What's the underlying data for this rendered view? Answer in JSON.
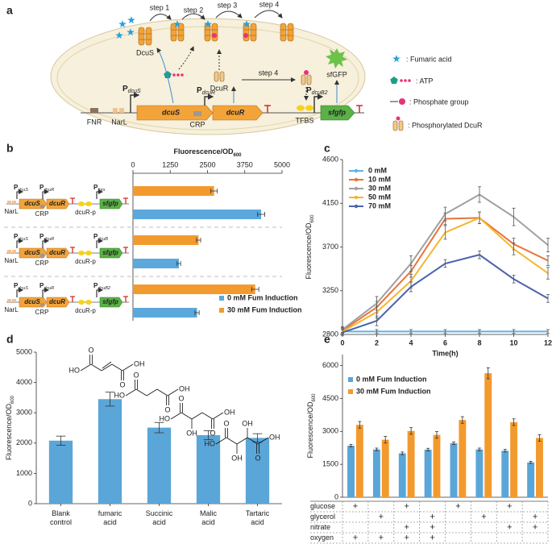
{
  "diagram": {
    "panel": "a",
    "steps": [
      "step 1",
      "step 2",
      "step 3",
      "step 4"
    ],
    "dcus": "DcuS",
    "dcur": "DcuR",
    "sfgfp_protein": "sfGFP",
    "tfbs": "TFBS",
    "fnr": "FNR",
    "narl": "NarL",
    "crp": "CRP",
    "genes": [
      "dcuS",
      "dcuR",
      "sfgfp"
    ],
    "promoter_letter": "P",
    "promoters": [
      "dcuS",
      "dcuR",
      "dcuB2"
    ],
    "legend": [
      ": Fumaric acid",
      ": ATP",
      ": Phosphate group",
      ": Phosphorylated DcuR"
    ]
  },
  "chart_data": [
    {
      "type": "bar",
      "panel": "b",
      "orientation": "horizontal",
      "xlabel": {
        "text": "Fluorescence/OD",
        "sub": "600"
      },
      "xlim": [
        0,
        5000
      ],
      "xticks": [
        0,
        1250,
        2500,
        3750,
        5000
      ],
      "series": [
        {
          "name": "0 mM Fum Induction",
          "color": "#5aa8dc",
          "values": [
            4300,
            1540,
            2150
          ],
          "errors": [
            120,
            60,
            70
          ]
        },
        {
          "name": "30 mM Fum Induction",
          "color": "#f39a2e",
          "values": [
            2720,
            2200,
            4100
          ],
          "errors": [
            110,
            70,
            120
          ]
        }
      ],
      "promoter_letter": "P",
      "constructs": [
        {
          "promoters": [
            "dcuS",
            "dcuR",
            "fnrs"
          ],
          "genes": [
            "dcuS",
            "dcuR",
            "sfgfp"
          ],
          "sites": [
            "NarL",
            "CRP",
            "dcuR-p"
          ]
        },
        {
          "promoters": [
            "dcuS",
            "dcuR",
            "dcuB"
          ],
          "genes": [
            "dcuS",
            "dcuR",
            "sfgfp"
          ],
          "sites": [
            "NarL",
            "CRP",
            "dcuR-p"
          ]
        },
        {
          "promoters": [
            "dcuS",
            "dcuR",
            "dcuB2"
          ],
          "genes": [
            "dcuS",
            "dcuR",
            "sfgfp"
          ],
          "sites": [
            "NarL",
            "CRP",
            "dcuR-p"
          ]
        }
      ]
    },
    {
      "type": "line",
      "panel": "c",
      "xlabel": "Time(h)",
      "ylabel": {
        "text": "Fluorescence/OD",
        "sub": "600"
      },
      "x": [
        0,
        2,
        4,
        6,
        8,
        10,
        12
      ],
      "xlim": [
        0,
        12
      ],
      "xticks": [
        0,
        2,
        4,
        6,
        8,
        10,
        12
      ],
      "ylim": [
        2800,
        4600
      ],
      "yticks": [
        2800,
        3250,
        3700,
        4150,
        4600
      ],
      "series": [
        {
          "name": "0 mM",
          "color": "#5ab4e5",
          "values": [
            2830,
            2830,
            2830,
            2830,
            2830,
            2830,
            2830
          ],
          "errors": [
            20,
            20,
            20,
            20,
            20,
            20,
            20
          ]
        },
        {
          "name": "10 mM",
          "color": "#e8733a",
          "values": [
            2840,
            3080,
            3450,
            3990,
            4000,
            3730,
            3560
          ],
          "errors": [
            30,
            60,
            60,
            60,
            60,
            60,
            50
          ]
        },
        {
          "name": "30 mM",
          "color": "#a0a0a0",
          "values": [
            2850,
            3120,
            3530,
            4040,
            4240,
            4010,
            3720
          ],
          "errors": [
            30,
            70,
            80,
            70,
            80,
            90,
            70
          ]
        },
        {
          "name": "50 mM",
          "color": "#f5b62e",
          "values": [
            2830,
            3030,
            3350,
            3850,
            4000,
            3680,
            3430
          ],
          "errors": [
            30,
            60,
            70,
            70,
            60,
            60,
            60
          ]
        },
        {
          "name": "70 mM",
          "color": "#4b64ad",
          "values": [
            2820,
            2940,
            3290,
            3530,
            3620,
            3370,
            3170
          ],
          "errors": [
            30,
            50,
            50,
            40,
            40,
            40,
            40
          ]
        }
      ]
    },
    {
      "type": "bar",
      "panel": "d",
      "ylabel": {
        "text": "Fluorescence/OD",
        "sub": "600"
      },
      "categories": [
        "Blank control",
        "fumaric acid",
        "Succinic acid",
        "Malic acid",
        "Tartaric acid"
      ],
      "values": [
        2080,
        3450,
        2510,
        2260,
        2170
      ],
      "errors": [
        150,
        230,
        170,
        150,
        140
      ],
      "color": "#5aa6d8",
      "ylim": [
        0,
        5000
      ],
      "yticks": [
        0,
        1000,
        2000,
        3000,
        4000,
        5000
      ],
      "structures": [
        [
          "HO",
          "O",
          "O",
          "OH"
        ],
        [
          "HO",
          "O",
          "O",
          "OH"
        ],
        [
          "HO",
          "O",
          "O",
          "OH",
          "OH"
        ],
        [
          "HO",
          "O",
          "O",
          "OH",
          "OH",
          "OH"
        ]
      ]
    },
    {
      "type": "bar",
      "panel": "e",
      "ylabel": {
        "text": "Fluorescence/OD",
        "sub": "600"
      },
      "ylim": [
        0,
        6500
      ],
      "yticks": [
        0,
        1500,
        3000,
        4500,
        6000
      ],
      "legend": true,
      "series": [
        {
          "name": "0 mM Fum Induction",
          "color": "#5aa6d8",
          "values": [
            2350,
            2180,
            2000,
            2170,
            2460,
            2180,
            2120,
            1590
          ],
          "errors": [
            60,
            60,
            60,
            60,
            60,
            60,
            60,
            50
          ]
        },
        {
          "name": "30 mM Fum Induction",
          "color": "#f39a2e",
          "values": [
            3300,
            2620,
            3020,
            2840,
            3520,
            5650,
            3420,
            2700
          ],
          "errors": [
            150,
            150,
            150,
            150,
            150,
            250,
            150,
            150
          ]
        }
      ],
      "table": [
        {
          "label": "glucose",
          "cells": [
            "+",
            null,
            "+",
            null,
            "+",
            null,
            "+",
            null
          ]
        },
        {
          "label": "glycerol",
          "cells": [
            null,
            "+",
            null,
            "+",
            null,
            "+",
            null,
            "+"
          ]
        },
        {
          "label": "nitrate",
          "cells": [
            null,
            null,
            "+",
            "+",
            null,
            null,
            "+",
            "+"
          ]
        },
        {
          "label": "oxygen",
          "cells": [
            "+",
            "+",
            "+",
            "+",
            null,
            null,
            null,
            null
          ]
        }
      ]
    }
  ]
}
